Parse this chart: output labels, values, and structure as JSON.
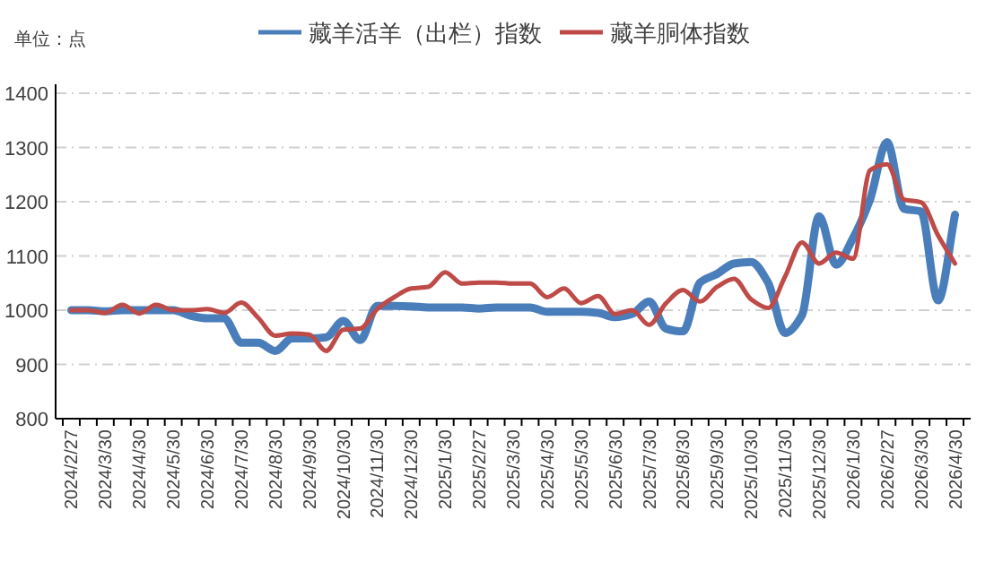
{
  "chart_data": {
    "type": "line",
    "annotations": [
      "单位：点"
    ],
    "categories": [
      "2024/2/27",
      null,
      "2024/3/30",
      null,
      "2024/4/30",
      null,
      "2024/5/30",
      null,
      "2024/6/30",
      null,
      "2024/7/30",
      null,
      "2024/8/30",
      null,
      "2024/9/30",
      null,
      "2024/10/30",
      null,
      "2024/11/30",
      null,
      "2024/12/30",
      null,
      "2025/1/30",
      null,
      "2025/2/27",
      null,
      "2025/3/30",
      null,
      "2025/4/30",
      null,
      "2025/5/30",
      null,
      "2025/6/30",
      null,
      "2025/7/30",
      null,
      "2025/8/30",
      null,
      "2025/9/30",
      null,
      "2025/10/30",
      null,
      "2025/11/30",
      null,
      "2025/12/30",
      null,
      "2026/1/30",
      null,
      "2026/2/27",
      null,
      "2026/3/30",
      null,
      "2026/4/30"
    ],
    "series": [
      {
        "name": "藏羊活羊（出栏）指数",
        "color": "#4a7ebb",
        "values": [
          1000,
          1000,
          998,
          1000,
          1000,
          1000,
          1000,
          990,
          985,
          985,
          940,
          940,
          925,
          948,
          948,
          950,
          980,
          945,
          1008,
          1008,
          1007,
          1005,
          1005,
          1005,
          1003,
          1005,
          1005,
          1005,
          997,
          997,
          997,
          995,
          987,
          993,
          1016,
          966,
          961,
          1051,
          1067,
          1086,
          1089,
          1051,
          958,
          991,
          1173,
          1084,
          1133,
          1204,
          1310,
          1187,
          1182,
          1018,
          1176
        ]
      },
      {
        "name": "藏羊胴体指数",
        "color": "#be4b48",
        "values": [
          1000,
          1000,
          995,
          1010,
          994,
          1010,
          1000,
          1000,
          1002,
          995,
          1014,
          986,
          953,
          957,
          955,
          925,
          964,
          966,
          1002,
          1024,
          1040,
          1043,
          1070,
          1049,
          1051,
          1051,
          1049,
          1049,
          1024,
          1040,
          1013,
          1026,
          993,
          1000,
          973,
          1013,
          1037,
          1016,
          1043,
          1058,
          1020,
          1004,
          1062,
          1125,
          1086,
          1106,
          1095,
          1258,
          1269,
          1204,
          1199,
          1138,
          1086
        ]
      }
    ],
    "ylim": [
      800,
      1400
    ],
    "yticks": [
      800,
      900,
      1000,
      1100,
      1200,
      1300,
      1400
    ],
    "grid": "y",
    "legend": "top"
  }
}
